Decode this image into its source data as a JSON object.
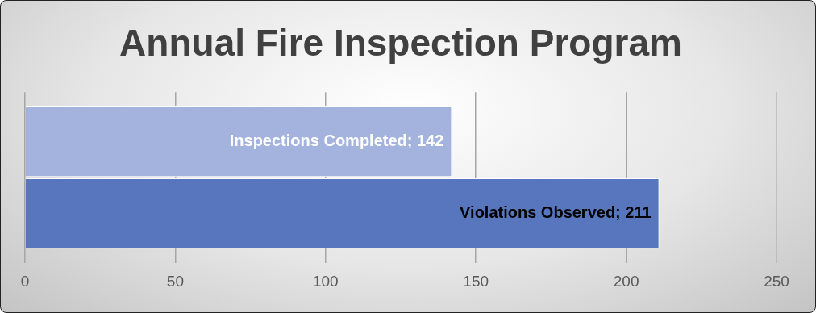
{
  "chart_data": {
    "type": "bar",
    "title": "Annual Fire Inspection Program",
    "orientation": "horizontal",
    "categories": [
      null
    ],
    "series": [
      {
        "color": "#a3b3de",
        "values": [
          142
        ],
        "value_labels": [
          "Inspections Completed; 142"
        ]
      },
      {
        "color": "#5876bd",
        "values": [
          211
        ],
        "value_labels": [
          "Violations Observed; 211"
        ]
      }
    ],
    "xlim": [
      0,
      250
    ],
    "xticks": [
      0,
      50,
      100,
      150,
      200,
      250
    ],
    "grid": "x",
    "legend": false
  }
}
